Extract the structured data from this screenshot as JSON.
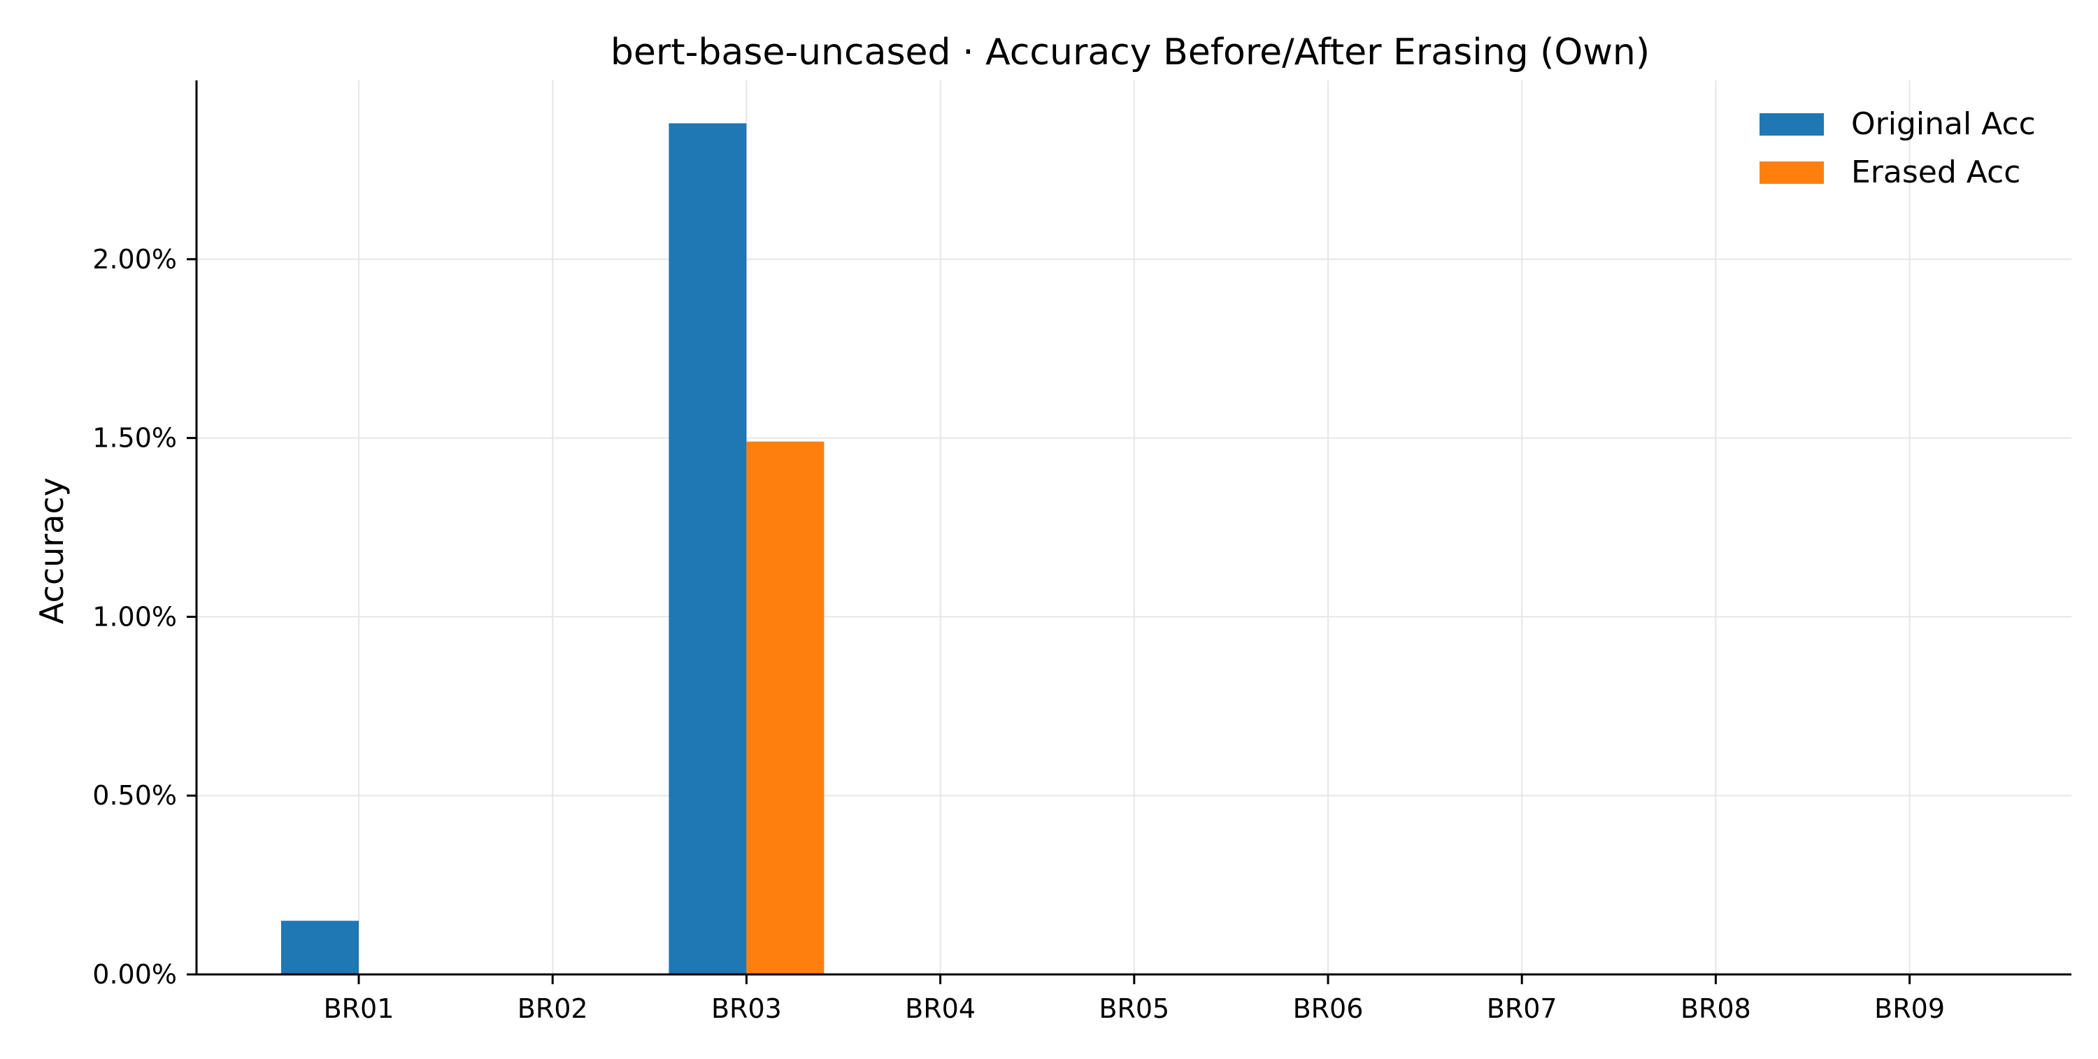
{
  "chart_data": {
    "type": "bar",
    "title": "bert-base-uncased · Accuracy Before/After Erasing (Own)",
    "xlabel": "",
    "ylabel": "Accuracy",
    "categories": [
      "BR01",
      "BR02",
      "BR03",
      "BR04",
      "BR05",
      "BR06",
      "BR07",
      "BR08",
      "BR09"
    ],
    "series": [
      {
        "name": "Original Acc",
        "color": "#1f77b4",
        "values": [
          0.15,
          0,
          2.38,
          0,
          0,
          0,
          0,
          0,
          0
        ]
      },
      {
        "name": "Erased Acc",
        "color": "#ff7f0e",
        "values": [
          0,
          0,
          1.49,
          0,
          0,
          0,
          0,
          0,
          0
        ]
      }
    ],
    "y_unit": "%",
    "y_ticks": [
      0,
      0.5,
      1.0,
      1.5,
      2.0
    ],
    "y_tick_labels": [
      "0.00%",
      "0.50%",
      "1.00%",
      "1.50%",
      "2.00%"
    ],
    "ylim": [
      0,
      2.5
    ],
    "grid": true,
    "legend_position": "top-right"
  }
}
